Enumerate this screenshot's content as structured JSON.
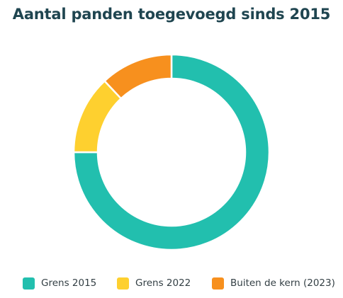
{
  "chart_data": {
    "type": "pie",
    "title": "Aantal panden toegevoegd sinds 2015",
    "donut": true,
    "categories": [
      "Grens 2015",
      "Grens 2022",
      "Buiten de kern (2023)"
    ],
    "values": [
      75,
      13,
      12
    ],
    "colors": [
      "#22bfae",
      "#fed02f",
      "#f7901e"
    ],
    "legend": "bottom"
  }
}
